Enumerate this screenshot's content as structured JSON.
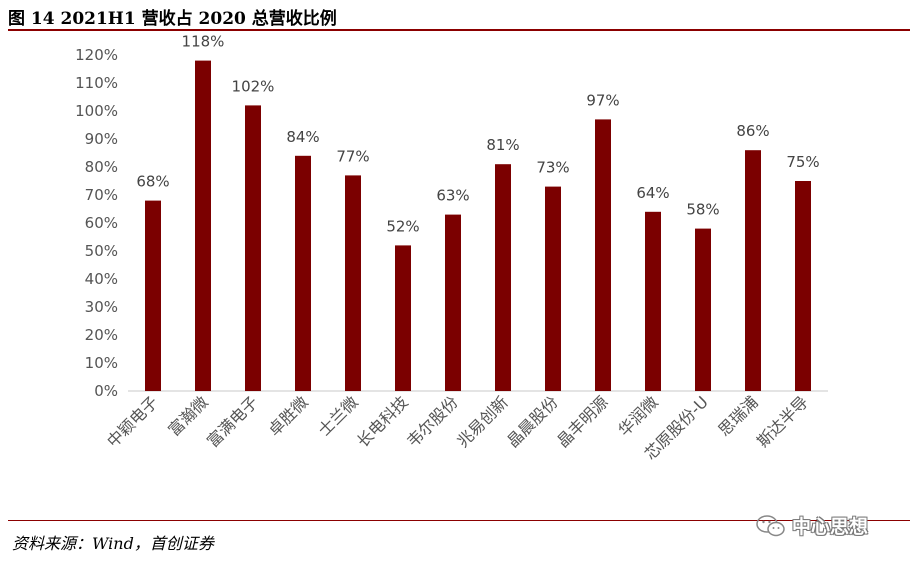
{
  "figure": {
    "title": "图 14 2021H1 营收占 2020 总营收比例",
    "source": "资料来源：Wind，首创证券",
    "watermark": "中心思想"
  },
  "chart_data": {
    "type": "bar",
    "categories": [
      "中颖电子",
      "富瀚微",
      "富满电子",
      "卓胜微",
      "士兰微",
      "长电科技",
      "韦尔股份",
      "兆易创新",
      "晶晨股份",
      "晶丰明源",
      "华润微",
      "芯原股份-U",
      "思瑞浦",
      "斯达半导"
    ],
    "values": [
      68,
      118,
      102,
      84,
      77,
      52,
      63,
      81,
      73,
      97,
      64,
      58,
      86,
      75
    ],
    "data_labels": [
      "68%",
      "118%",
      "102%",
      "84%",
      "77%",
      "52%",
      "63%",
      "81%",
      "73%",
      "97%",
      "64%",
      "58%",
      "86%",
      "75%"
    ],
    "y_ticks": [
      "0%",
      "10%",
      "20%",
      "30%",
      "40%",
      "50%",
      "60%",
      "70%",
      "80%",
      "90%",
      "100%",
      "110%",
      "120%"
    ],
    "ylim": [
      0,
      120
    ],
    "bar_color": "#7b0000",
    "grid": false,
    "legend": "none"
  }
}
